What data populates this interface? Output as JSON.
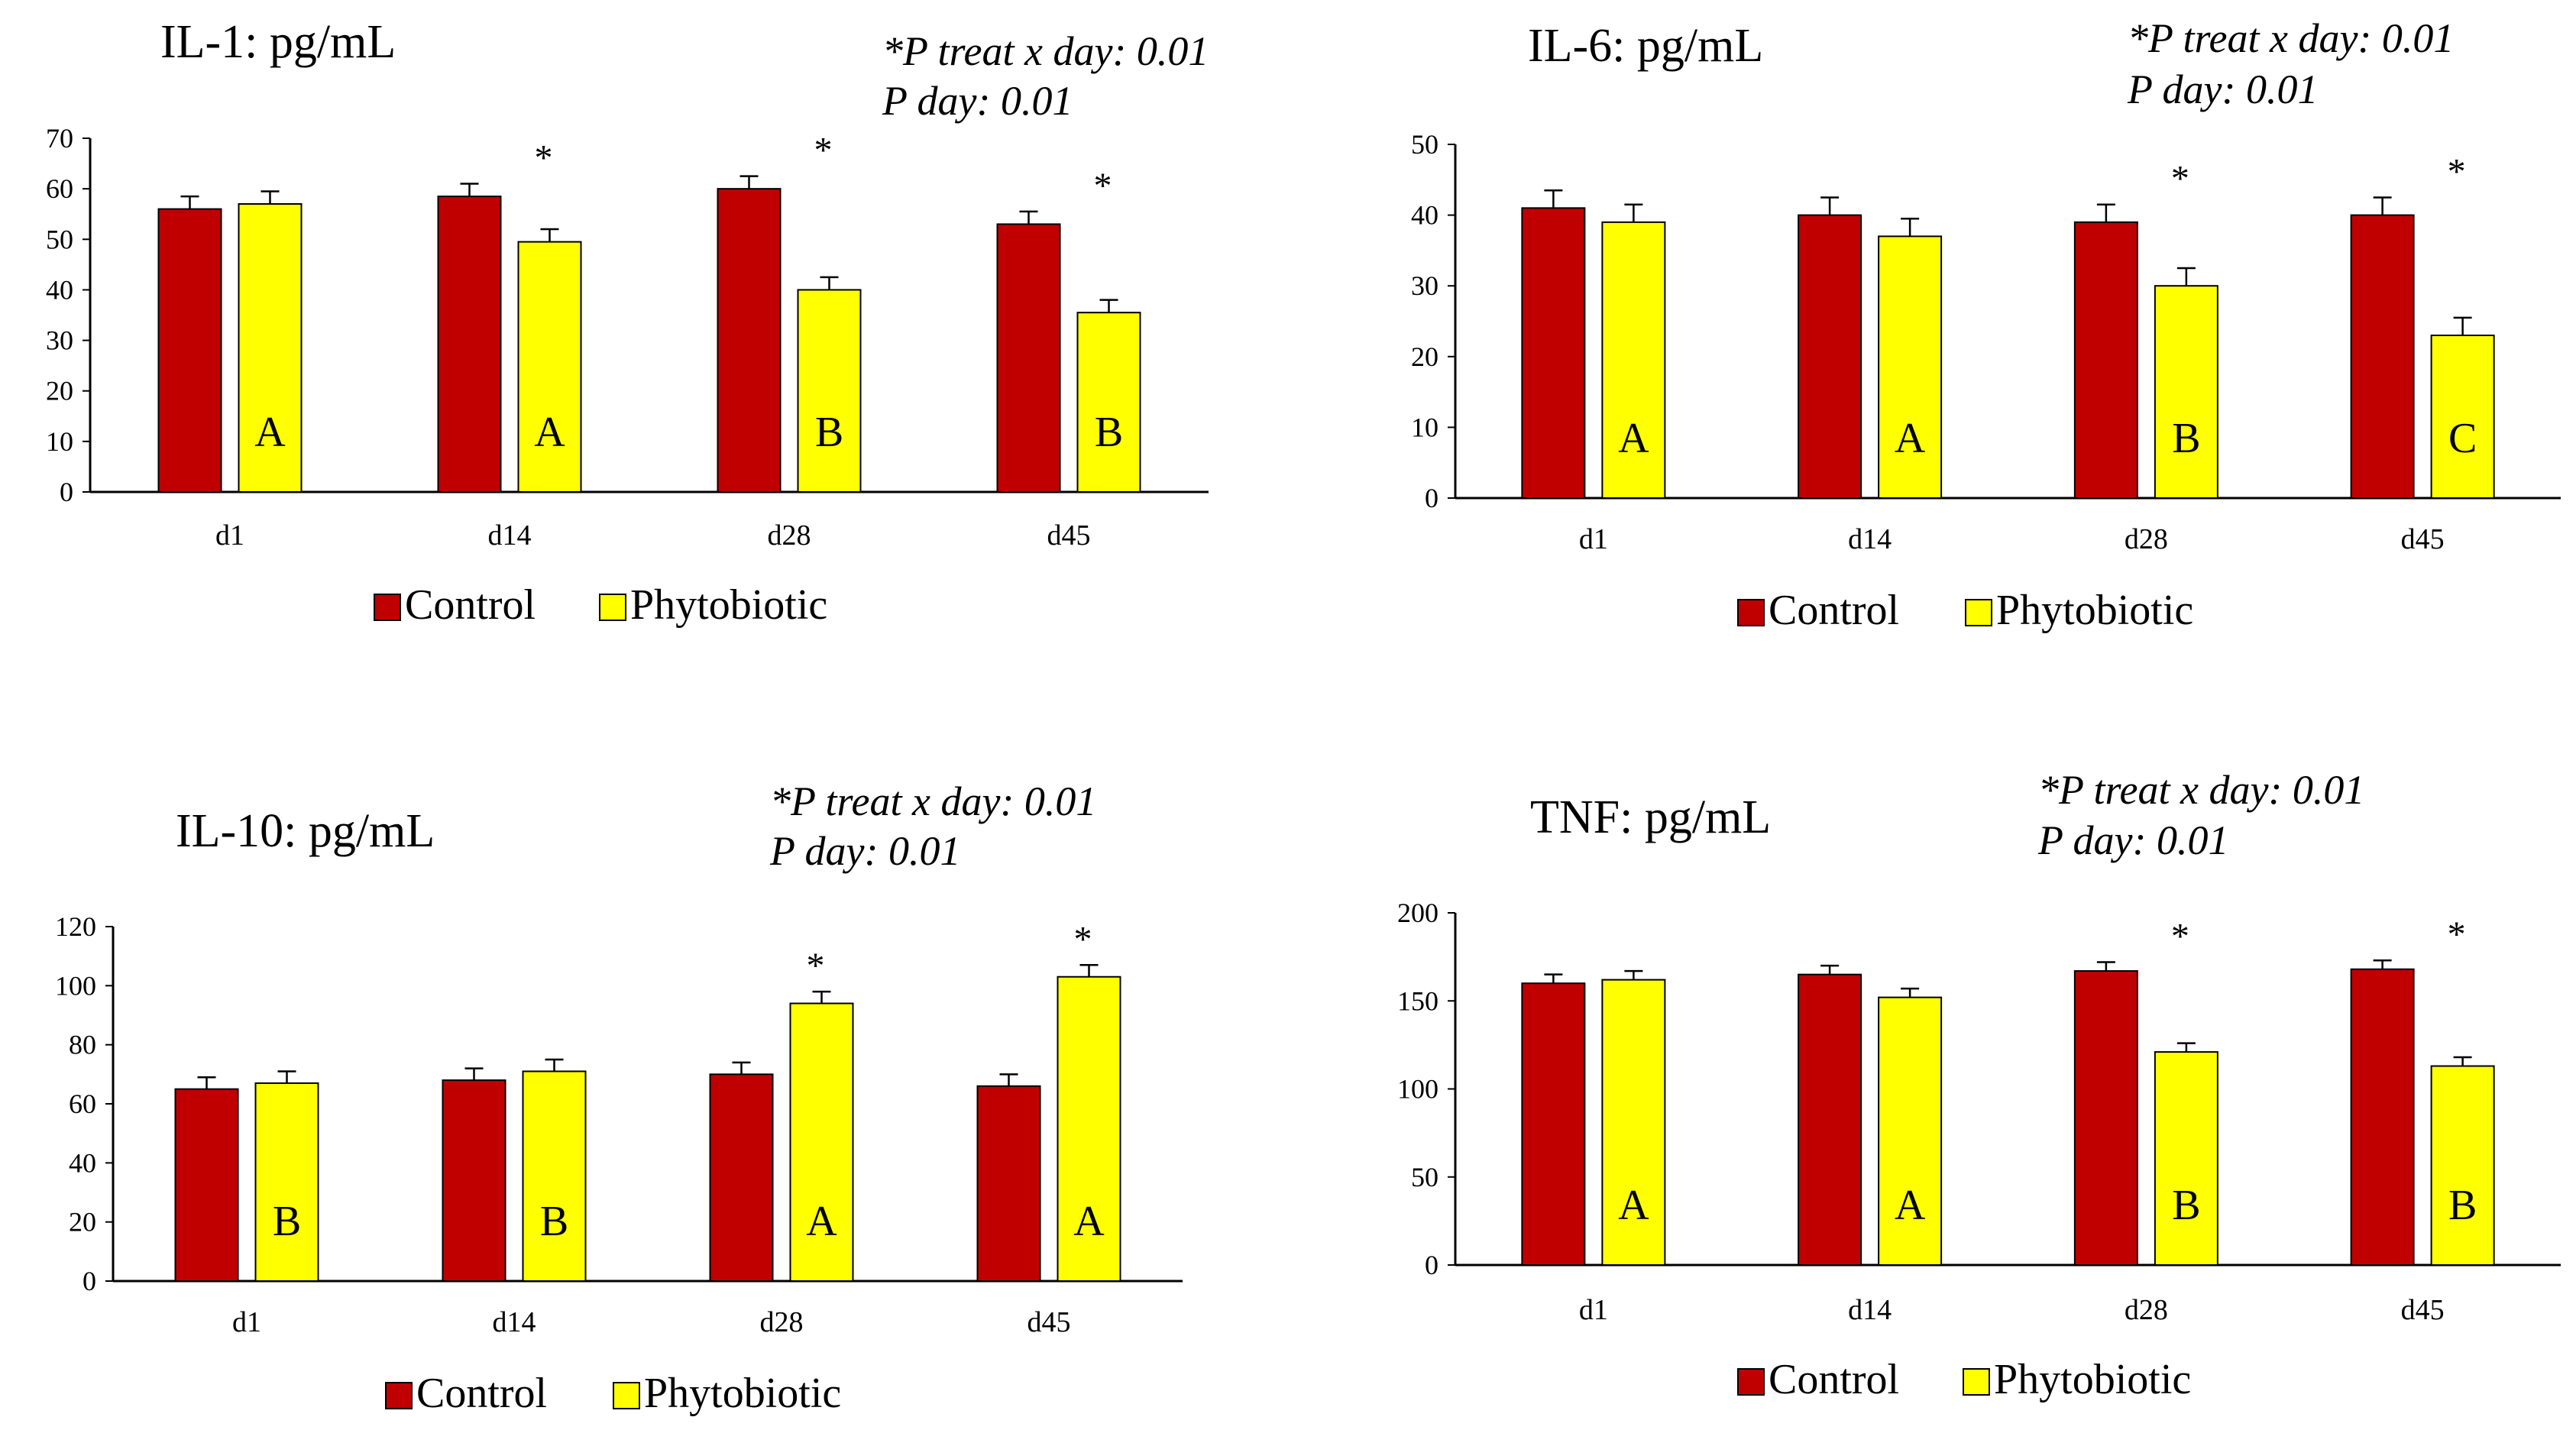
{
  "colors": {
    "control": "#c00000",
    "phytobiotic": "#ffff00",
    "bar_outline": "#000000",
    "axis": "#000000"
  },
  "chart_data": [
    {
      "type": "bar",
      "title": "IL-1: pg/mL",
      "stats_lines": [
        "*P treat x day: 0.01",
        "P day: 0.01"
      ],
      "categories": [
        "d1",
        "d14",
        "d28",
        "d45"
      ],
      "ylim": [
        0,
        70
      ],
      "yticks": [
        0,
        10,
        20,
        30,
        40,
        50,
        60,
        70
      ],
      "series": [
        {
          "name": "Control",
          "values": [
            56,
            58.5,
            60,
            53
          ],
          "errors": [
            2.5,
            2.5,
            2.5,
            2.5
          ]
        },
        {
          "name": "Phytobiotic",
          "values": [
            57,
            49.5,
            40,
            35.5
          ],
          "errors": [
            2.5,
            2.5,
            2.5,
            2.5
          ]
        }
      ],
      "letters": [
        "A",
        "A",
        "B",
        "B"
      ],
      "significant": [
        false,
        true,
        true,
        true
      ],
      "legend": [
        "Control",
        "Phytobiotic"
      ]
    },
    {
      "type": "bar",
      "title": "IL-6: pg/mL",
      "stats_lines": [
        "*P treat x day: 0.01",
        "P day: 0.01"
      ],
      "categories": [
        "d1",
        "d14",
        "d28",
        "d45"
      ],
      "ylim": [
        0,
        50
      ],
      "yticks": [
        0,
        10,
        20,
        30,
        40,
        50
      ],
      "series": [
        {
          "name": "Control",
          "values": [
            41,
            40,
            39,
            40
          ],
          "errors": [
            2.5,
            2.5,
            2.5,
            2.5
          ]
        },
        {
          "name": "Phytobiotic",
          "values": [
            39,
            37,
            30,
            23
          ],
          "errors": [
            2.5,
            2.5,
            2.5,
            2.5
          ]
        }
      ],
      "letters": [
        "A",
        "A",
        "B",
        "C"
      ],
      "significant": [
        false,
        false,
        true,
        true
      ],
      "legend": [
        "Control",
        "Phytobiotic"
      ]
    },
    {
      "type": "bar",
      "title": "IL-10: pg/mL",
      "stats_lines": [
        "*P treat x day: 0.01",
        "P day: 0.01"
      ],
      "categories": [
        "d1",
        "d14",
        "d28",
        "d45"
      ],
      "ylim": [
        0,
        120
      ],
      "yticks": [
        0,
        20,
        40,
        60,
        80,
        100,
        120
      ],
      "series": [
        {
          "name": "Control",
          "values": [
            65,
            68,
            70,
            66
          ],
          "errors": [
            4,
            4,
            4,
            4
          ]
        },
        {
          "name": "Phytobiotic",
          "values": [
            67,
            71,
            94,
            103
          ],
          "errors": [
            4,
            4,
            4,
            4
          ]
        }
      ],
      "letters": [
        "B",
        "B",
        "A",
        "A"
      ],
      "significant": [
        false,
        false,
        true,
        true
      ],
      "legend": [
        "Control",
        "Phytobiotic"
      ]
    },
    {
      "type": "bar",
      "title": "TNF: pg/mL",
      "stats_lines": [
        "*P treat x day: 0.01",
        "P day: 0.01"
      ],
      "categories": [
        "d1",
        "d14",
        "d28",
        "d45"
      ],
      "ylim": [
        0,
        200
      ],
      "yticks": [
        0,
        50,
        100,
        150,
        200
      ],
      "series": [
        {
          "name": "Control",
          "values": [
            160,
            165,
            167,
            168
          ],
          "errors": [
            5,
            5,
            5,
            5
          ]
        },
        {
          "name": "Phytobiotic",
          "values": [
            162,
            152,
            121,
            113
          ],
          "errors": [
            5,
            5,
            5,
            5
          ]
        }
      ],
      "letters": [
        "A",
        "A",
        "B",
        "B"
      ],
      "significant": [
        false,
        false,
        true,
        true
      ],
      "legend": [
        "Control",
        "Phytobiotic"
      ]
    }
  ]
}
